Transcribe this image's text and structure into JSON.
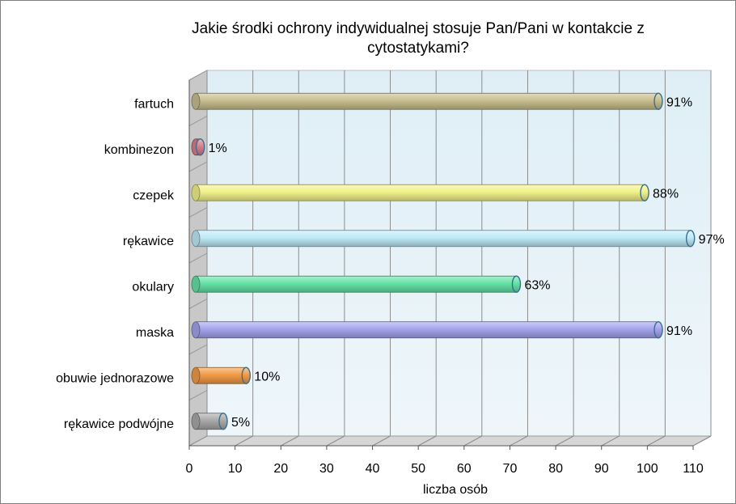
{
  "chart_data": {
    "type": "bar",
    "orientation": "horizontal",
    "title": "Jakie środki ochrony indywidualnej stosuje Pan/Pani w kontakcie z cytostatykami?",
    "title_lines": [
      "Jakie środki ochrony indywidualnej stosuje Pan/Pani w kontakcie z",
      "cytostatykami?"
    ],
    "xlabel": "liczba osób",
    "ylabel": "",
    "xlim": [
      0,
      110
    ],
    "xticks": [
      0,
      10,
      20,
      30,
      40,
      50,
      60,
      70,
      80,
      90,
      100,
      110
    ],
    "grid": true,
    "legend": "none",
    "categories": [
      "fartuch",
      "kombinezon",
      "czepek",
      "rękawice",
      "okulary",
      "maska",
      "obuwie jednorazowe",
      "rękawice podwójne"
    ],
    "values": [
      101,
      1,
      98,
      108,
      70,
      101,
      11,
      6
    ],
    "data_labels": [
      "91%",
      "1%",
      "88%",
      "97%",
      "63%",
      "91%",
      "10%",
      "5%"
    ],
    "colors": [
      "#C8BE8F",
      "#D77F8E",
      "#F2F28A",
      "#BEEBF8",
      "#64E3A6",
      "#A4A4EE",
      "#F29B46",
      "#A9A9A9"
    ]
  }
}
